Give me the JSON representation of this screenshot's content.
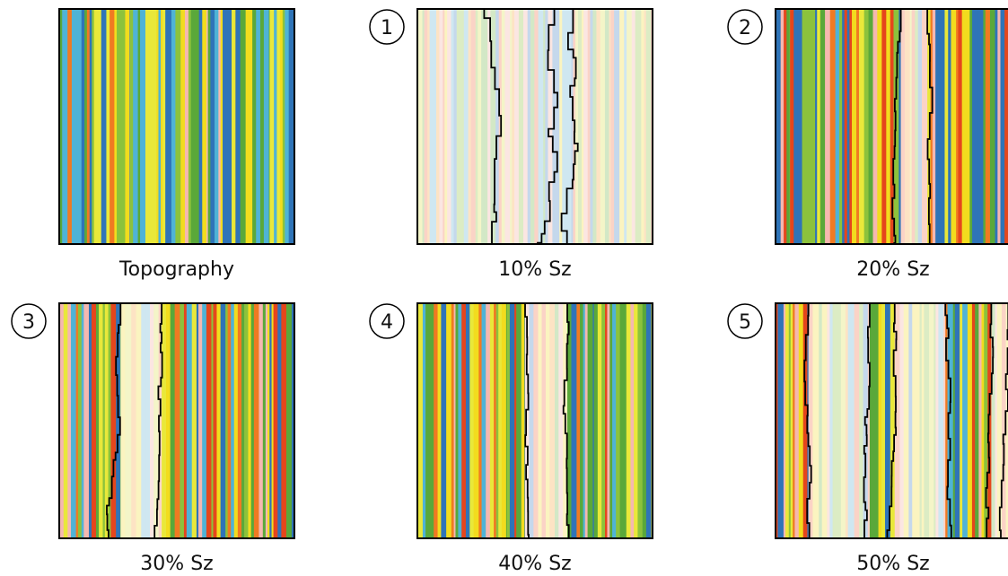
{
  "panels": [
    {
      "label": "Topography"
    },
    {
      "number": "1",
      "label": "10% Sz"
    },
    {
      "number": "2",
      "label": "20% Sz"
    },
    {
      "number": "3",
      "label": "30% Sz"
    },
    {
      "number": "4",
      "label": "40% Sz"
    },
    {
      "number": "5",
      "label": "50% Sz"
    }
  ]
}
